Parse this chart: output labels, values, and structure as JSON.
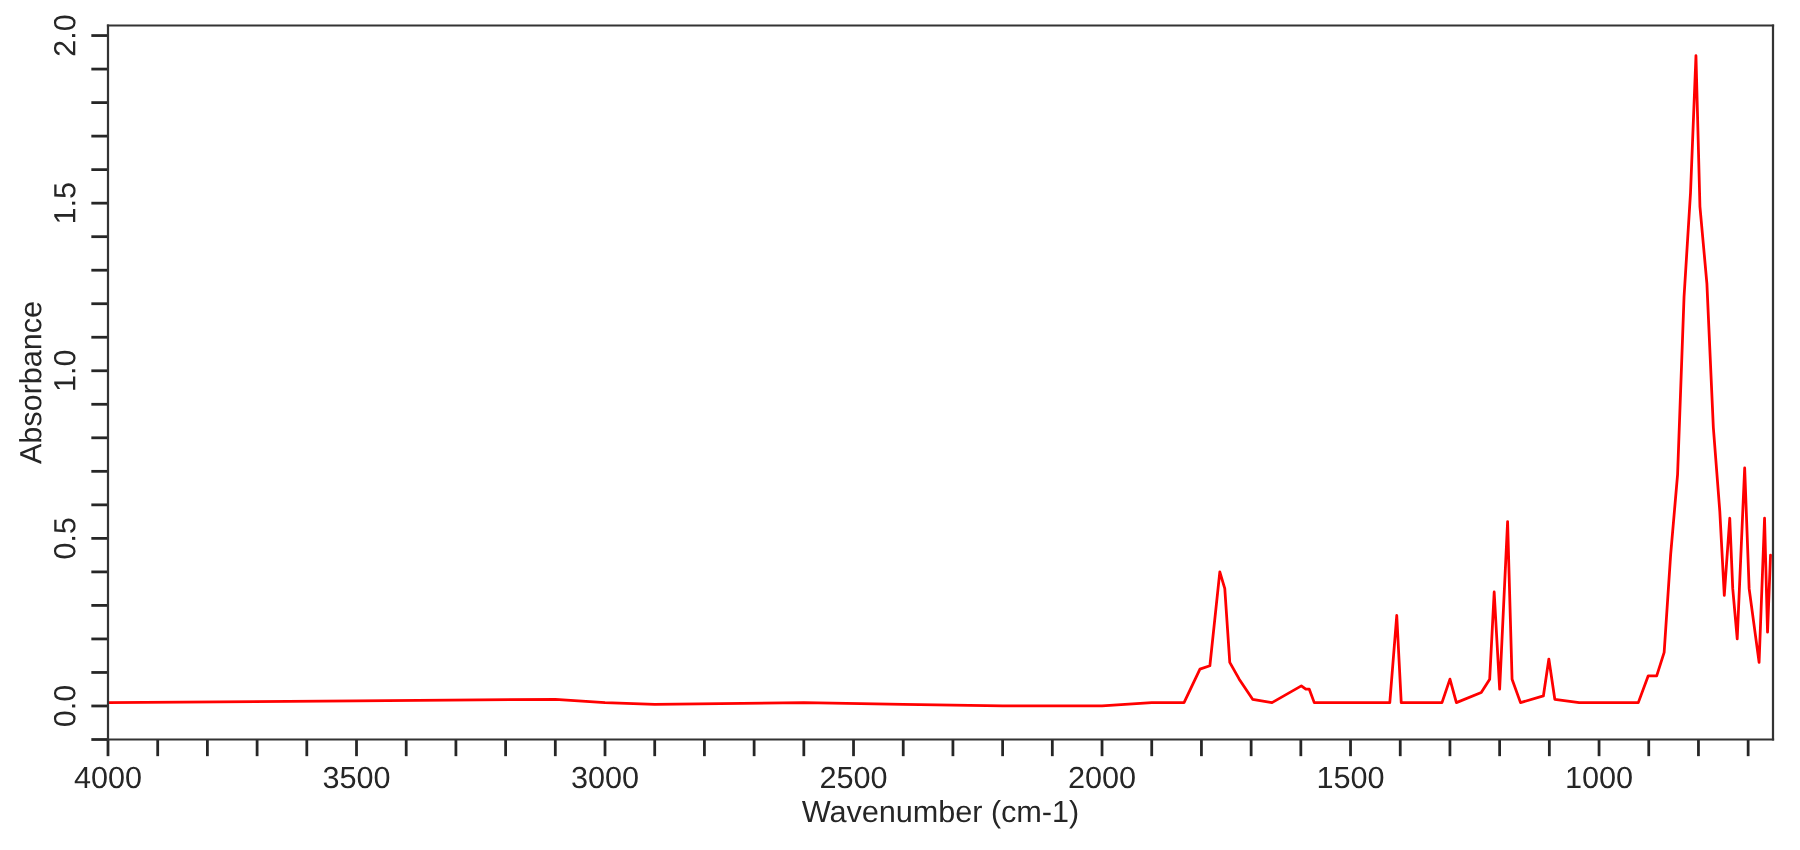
{
  "chart_data": {
    "type": "line",
    "xlabel": "Wavenumber (cm-1)",
    "ylabel": "Absorbance",
    "grid": false,
    "marker": "none",
    "line_style": "solid",
    "xlim": [
      4000,
      650
    ],
    "ylim": [
      -0.1,
      2.03
    ],
    "xticks": [
      4000,
      {
        "value": 3900,
        "label": null
      },
      {
        "value": 3800,
        "label": null
      },
      {
        "value": 3700,
        "label": null
      },
      {
        "value": 3600,
        "label": null
      },
      3500,
      {
        "value": 3400,
        "label": null
      },
      {
        "value": 3300,
        "label": null
      },
      {
        "value": 3200,
        "label": null
      },
      {
        "value": 3100,
        "label": null
      },
      3000,
      {
        "value": 2900,
        "label": null
      },
      {
        "value": 2800,
        "label": null
      },
      {
        "value": 2700,
        "label": null
      },
      {
        "value": 2600,
        "label": null
      },
      2500,
      {
        "value": 2400,
        "label": null
      },
      {
        "value": 2300,
        "label": null
      },
      {
        "value": 2200,
        "label": null
      },
      {
        "value": 2100,
        "label": null
      },
      2000,
      {
        "value": 1900,
        "label": null
      },
      {
        "value": 1800,
        "label": null
      },
      {
        "value": 1700,
        "label": null
      },
      {
        "value": 1600,
        "label": null
      },
      1500,
      {
        "value": 1400,
        "label": null
      },
      {
        "value": 1300,
        "label": null
      },
      {
        "value": 1200,
        "label": null
      },
      {
        "value": 1100,
        "label": null
      },
      1000,
      {
        "value": 900,
        "label": null
      },
      {
        "value": 800,
        "label": null
      },
      {
        "value": 700,
        "label": null
      }
    ],
    "yticks": [
      {
        "value": -0.1,
        "label": null
      },
      {
        "value": 0.0,
        "label": "0.0"
      },
      {
        "value": 0.1,
        "label": null
      },
      {
        "value": 0.2,
        "label": null
      },
      {
        "value": 0.3,
        "label": null
      },
      {
        "value": 0.4,
        "label": null
      },
      0.5,
      {
        "value": 0.6,
        "label": null
      },
      {
        "value": 0.7,
        "label": null
      },
      {
        "value": 0.8,
        "label": null
      },
      {
        "value": 0.9,
        "label": null
      },
      {
        "value": 1.0,
        "label": "1.0"
      },
      {
        "value": 1.1,
        "label": null
      },
      {
        "value": 1.2,
        "label": null
      },
      {
        "value": 1.3,
        "label": null
      },
      {
        "value": 1.4,
        "label": null
      },
      1.5,
      {
        "value": 1.6,
        "label": null
      },
      {
        "value": 1.7,
        "label": null
      },
      {
        "value": 1.8,
        "label": null
      },
      {
        "value": 1.9,
        "label": null
      },
      {
        "value": 2.0,
        "label": "2.0"
      }
    ],
    "series": [
      {
        "color": "#ff0000",
        "x": [
          4000,
          3500,
          3100,
          3000,
          2900,
          2600,
          2400,
          2200,
          2000,
          1900,
          1835,
          1803,
          1783,
          1763,
          1753,
          1743,
          1724,
          1697,
          1658,
          1599,
          1590,
          1583,
          1573,
          1421,
          1407,
          1398,
          1316,
          1300,
          1287,
          1237,
          1220,
          1211,
          1200,
          1184,
          1175,
          1158,
          1112,
          1101,
          1089,
          1040,
          921,
          901,
          884,
          869,
          856,
          842,
          829,
          816,
          805,
          797,
          783,
          770,
          757,
          748,
          737,
          731,
          722,
          707,
          698,
          678,
          667,
          661,
          655
        ],
        "values": [
          0.01,
          0.015,
          0.02,
          0.01,
          0.005,
          0.01,
          0.005,
          0.0,
          0.0,
          0.01,
          0.01,
          0.11,
          0.12,
          0.4,
          0.35,
          0.13,
          0.08,
          0.02,
          0.01,
          0.06,
          0.05,
          0.05,
          0.01,
          0.01,
          0.27,
          0.01,
          0.01,
          0.08,
          0.01,
          0.04,
          0.08,
          0.34,
          0.05,
          0.55,
          0.08,
          0.01,
          0.03,
          0.14,
          0.02,
          0.01,
          0.01,
          0.09,
          0.09,
          0.16,
          0.45,
          0.69,
          1.22,
          1.53,
          1.94,
          1.49,
          1.26,
          0.83,
          0.58,
          0.33,
          0.56,
          0.35,
          0.2,
          0.71,
          0.35,
          0.13,
          0.56,
          0.22,
          0.45
        ]
      }
    ]
  }
}
